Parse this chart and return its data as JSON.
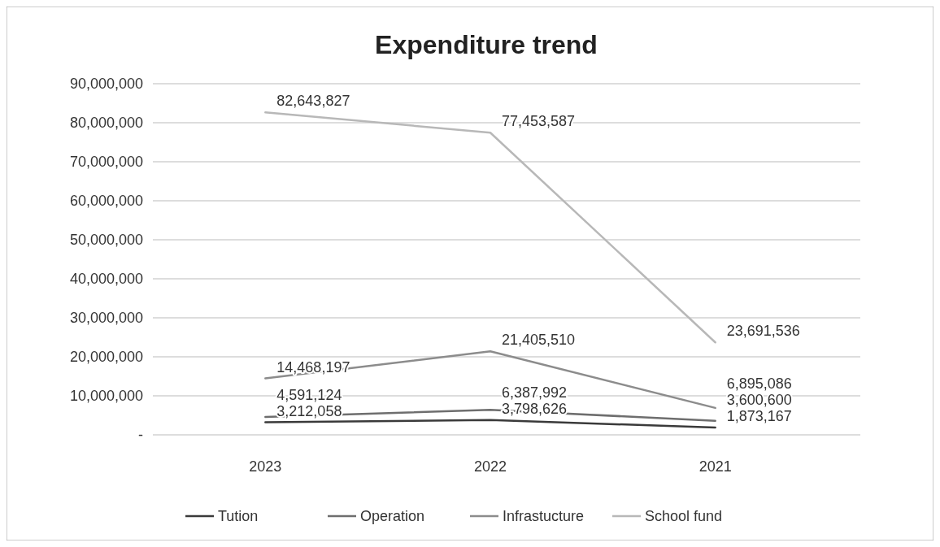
{
  "chart_data": {
    "type": "line",
    "title": "Expenditure trend",
    "categories": [
      "2023",
      "2022",
      "2021"
    ],
    "series": [
      {
        "name": "Tution",
        "color": "#3a3a3a",
        "values": [
          3212058,
          3798626,
          1873167
        ],
        "value_labels": [
          "3,212,058",
          "3,798,626",
          "1,873,167"
        ]
      },
      {
        "name": "Operation",
        "color": "#6e6e6e",
        "values": [
          4591124,
          6387992,
          3600600
        ],
        "value_labels": [
          "4,591,124",
          "6,387,992",
          "3,600,600"
        ]
      },
      {
        "name": "Infrastucture",
        "color": "#8c8c8c",
        "values": [
          14468197,
          21405510,
          6895086
        ],
        "value_labels": [
          "14,468,197",
          "21,405,510",
          "6,895,086"
        ]
      },
      {
        "name": "School fund",
        "color": "#b8b8b8",
        "values": [
          82643827,
          77453587,
          23691536
        ],
        "value_labels": [
          "82,643,827",
          "77,453,587",
          "23,691,536"
        ]
      }
    ],
    "ylim": [
      0,
      90000000
    ],
    "yticks": [
      {
        "value": 0,
        "label": "-"
      },
      {
        "value": 10000000,
        "label": "10,000,000"
      },
      {
        "value": 20000000,
        "label": "20,000,000"
      },
      {
        "value": 30000000,
        "label": "30,000,000"
      },
      {
        "value": 40000000,
        "label": "40,000,000"
      },
      {
        "value": 50000000,
        "label": "50,000,000"
      },
      {
        "value": 60000000,
        "label": "60,000,000"
      },
      {
        "value": 70000000,
        "label": "70,000,000"
      },
      {
        "value": 80000000,
        "label": "80,000,000"
      },
      {
        "value": 90000000,
        "label": "90,000,000"
      }
    ],
    "grid": "y",
    "legend": "bottom",
    "marker": "none",
    "line_style": "solid"
  }
}
